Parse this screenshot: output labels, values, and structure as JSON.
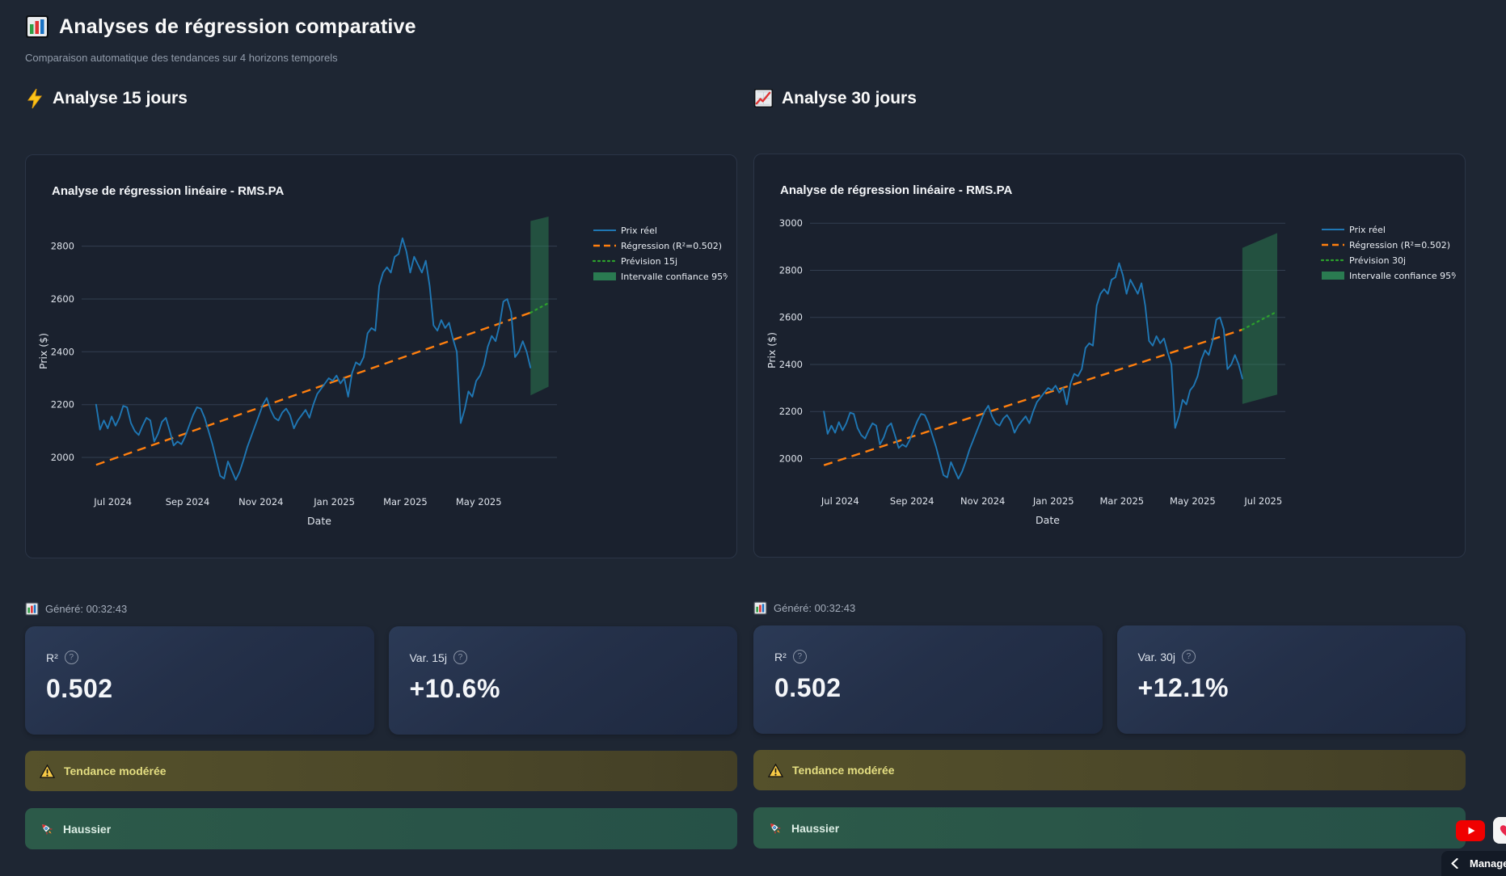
{
  "page": {
    "title": "Analyses de régression comparative",
    "subtitle": "Comparaison automatique des tendances sur 4 horizons temporels",
    "title_icon": "bar-chart-icon"
  },
  "columns": [
    {
      "section_title": "Analyse 15 jours",
      "section_icon": "lightning-icon",
      "generated": "Généré: 00:32:43",
      "metrics": [
        {
          "label": "R²",
          "value": "0.502"
        },
        {
          "label": "Var. 15j",
          "value": "+10.6%"
        }
      ],
      "alerts": [
        {
          "type": "warning",
          "icon": "warning-icon",
          "text": "Tendance modérée"
        },
        {
          "type": "bullish",
          "icon": "rocket-icon",
          "text": "Haussier"
        }
      ]
    },
    {
      "section_title": "Analyse 30 jours",
      "section_icon": "chart-up-icon",
      "generated": "Généré: 00:32:43",
      "metrics": [
        {
          "label": "R²",
          "value": "0.502"
        },
        {
          "label": "Var. 30j",
          "value": "+12.1%"
        }
      ],
      "alerts": [
        {
          "type": "warning",
          "icon": "warning-icon",
          "text": "Tendance modérée"
        },
        {
          "type": "bullish",
          "icon": "rocket-icon",
          "text": "Haussier"
        }
      ]
    }
  ],
  "chart_data": {
    "type": "line",
    "colors": {
      "price": "#1f77b4",
      "regression": "#ff7f0e",
      "forecast": "#2ca02c",
      "band": "#2e8b57",
      "grid": "#333e50",
      "tick": "#dfe4ec",
      "axis_label": "#dfe4ec"
    },
    "price_series": {
      "comment_units": "x = days since 2024-06-15, y = price in $",
      "start": 2,
      "step": 3.2232,
      "values": [
        2200,
        2105,
        2140,
        2110,
        2155,
        2120,
        2150,
        2195,
        2190,
        2130,
        2100,
        2085,
        2120,
        2150,
        2140,
        2060,
        2090,
        2135,
        2150,
        2100,
        2045,
        2060,
        2050,
        2080,
        2120,
        2160,
        2190,
        2185,
        2150,
        2100,
        2050,
        1990,
        1930,
        1920,
        1985,
        1950,
        1915,
        1945,
        1990,
        2040,
        2080,
        2120,
        2160,
        2200,
        2225,
        2180,
        2150,
        2140,
        2170,
        2185,
        2160,
        2110,
        2140,
        2160,
        2180,
        2150,
        2200,
        2240,
        2260,
        2280,
        2300,
        2290,
        2310,
        2280,
        2300,
        2230,
        2320,
        2360,
        2350,
        2380,
        2470,
        2490,
        2480,
        2650,
        2700,
        2720,
        2700,
        2760,
        2770,
        2830,
        2780,
        2700,
        2760,
        2730,
        2700,
        2745,
        2650,
        2500,
        2480,
        2520,
        2490,
        2510,
        2450,
        2400,
        2130,
        2180,
        2250,
        2230,
        2290,
        2310,
        2350,
        2420,
        2460,
        2440,
        2500,
        2590,
        2600,
        2550,
        2380,
        2400,
        2440,
        2400,
        2340
      ]
    },
    "charts": [
      {
        "title": "Analyse de régression linéaire - RMS.PA",
        "xlabel": "Date",
        "ylabel": "Prix ($)",
        "xlim": [
          -10,
          385
        ],
        "ylim": [
          1890,
          2915
        ],
        "yticks": [
          2000,
          2200,
          2400,
          2600,
          2800
        ],
        "xticks": [
          {
            "d": 16,
            "label": "Jul 2024"
          },
          {
            "d": 78,
            "label": "Sep 2024"
          },
          {
            "d": 139,
            "label": "Nov 2024"
          },
          {
            "d": 200,
            "label": "Jan 2025"
          },
          {
            "d": 259,
            "label": "Mar 2025"
          },
          {
            "d": 320,
            "label": "May 2025"
          }
        ],
        "regression": {
          "x": [
            2,
            363
          ],
          "y": [
            1972,
            2548
          ]
        },
        "forecast": {
          "x": [
            363,
            378
          ],
          "y": [
            2548,
            2585
          ]
        },
        "confidence_band": [
          [
            363,
            2235
          ],
          [
            378,
            2268
          ],
          [
            378,
            2912
          ],
          [
            363,
            2895
          ]
        ],
        "legend": [
          {
            "label": "Prix réel",
            "type": "line"
          },
          {
            "label": "Régression (R²=0.502)",
            "type": "dashed"
          },
          {
            "label": "Prévision 15j",
            "type": "dotted"
          },
          {
            "label": "Intervalle confiance 95%",
            "type": "band"
          }
        ]
      },
      {
        "title": "Analyse de régression linéaire - RMS.PA",
        "xlabel": "Date",
        "ylabel": "Prix ($)",
        "xlim": [
          -10,
          400
        ],
        "ylim": [
          1885,
          3035
        ],
        "yticks": [
          2000,
          2200,
          2400,
          2600,
          2800,
          3000
        ],
        "xticks": [
          {
            "d": 16,
            "label": "Jul 2024"
          },
          {
            "d": 78,
            "label": "Sep 2024"
          },
          {
            "d": 139,
            "label": "Nov 2024"
          },
          {
            "d": 200,
            "label": "Jan 2025"
          },
          {
            "d": 259,
            "label": "Mar 2025"
          },
          {
            "d": 320,
            "label": "May 2025"
          },
          {
            "d": 381,
            "label": "Jul 2025"
          }
        ],
        "regression": {
          "x": [
            2,
            363
          ],
          "y": [
            1972,
            2548
          ]
        },
        "forecast": {
          "x": [
            363,
            393
          ],
          "y": [
            2548,
            2625
          ]
        },
        "confidence_band": [
          [
            363,
            2232
          ],
          [
            393,
            2272
          ],
          [
            393,
            2958
          ],
          [
            363,
            2895
          ]
        ],
        "legend": [
          {
            "label": "Prix réel",
            "type": "line"
          },
          {
            "label": "Régression (R²=0.502)",
            "type": "dashed"
          },
          {
            "label": "Prévision 30j",
            "type": "dotted"
          },
          {
            "label": "Intervalle confiance 95%",
            "type": "band"
          }
        ]
      }
    ]
  },
  "overlay": {
    "youtube_icon": "youtube-icon",
    "heart_icon": "heart-icon",
    "manage_label": "Manage",
    "manage_chevron": "chevron-left-icon"
  }
}
